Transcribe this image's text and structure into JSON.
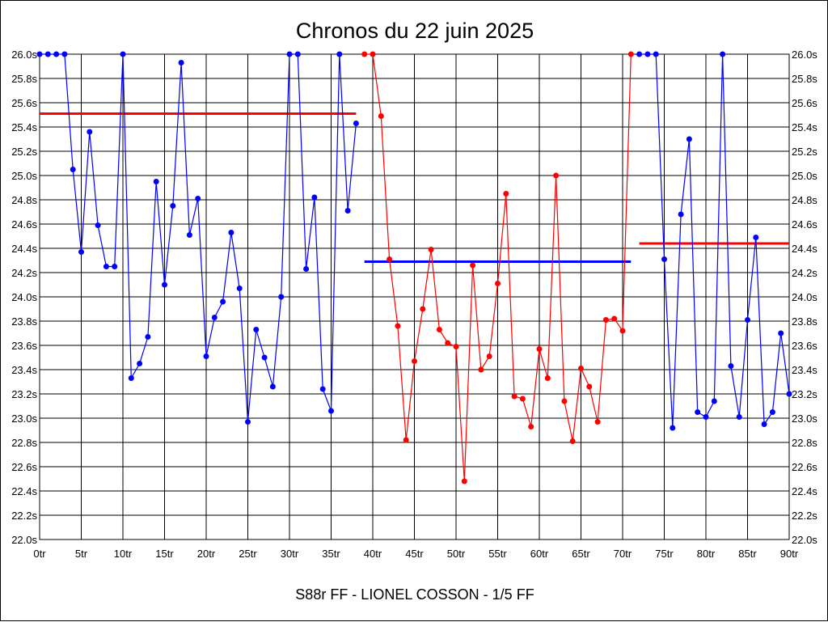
{
  "chart_data": {
    "type": "line",
    "title": "Chronos du 22 juin 2025",
    "xlabel": "S88r FF - LIONEL COSSON - 1/5 FF",
    "ylabel": "",
    "xlim": [
      0,
      90
    ],
    "ylim": [
      22.0,
      26.0
    ],
    "grid": true,
    "x_ticks": [
      "0tr",
      "5tr",
      "10tr",
      "15tr",
      "20tr",
      "25tr",
      "30tr",
      "35tr",
      "40tr",
      "45tr",
      "50tr",
      "55tr",
      "60tr",
      "65tr",
      "70tr",
      "75tr",
      "80tr",
      "85tr",
      "90tr"
    ],
    "y_ticks": [
      "22.0s",
      "22.2s",
      "22.4s",
      "22.6s",
      "22.8s",
      "23.0s",
      "23.2s",
      "23.4s",
      "23.6s",
      "23.8s",
      "24.0s",
      "24.2s",
      "24.4s",
      "24.6s",
      "24.8s",
      "25.0s",
      "25.2s",
      "25.4s",
      "25.6s",
      "25.8s",
      "26.0s"
    ],
    "series": [
      {
        "name": "segment-1",
        "color": "#0000ff",
        "x_start": 0,
        "values": [
          26.0,
          26.0,
          26.0,
          26.0,
          25.05,
          24.37,
          25.36,
          24.59,
          24.25,
          24.25,
          26.0,
          23.33,
          23.45,
          23.67,
          24.95,
          24.1,
          24.75,
          25.93,
          24.51,
          24.81,
          23.51,
          23.83,
          23.96,
          24.53,
          24.07,
          22.97,
          23.73,
          23.5,
          23.26,
          24.0,
          26.0,
          26.0,
          24.23,
          24.82,
          23.24,
          23.06,
          26.0,
          24.71,
          25.43
        ]
      },
      {
        "name": "segment-2",
        "color": "#ff0000",
        "x_start": 39,
        "values": [
          26.0,
          26.0,
          25.49,
          24.31,
          23.76,
          22.82,
          23.47,
          23.9,
          24.39,
          23.73,
          23.62,
          23.59,
          22.48,
          24.26,
          23.4,
          23.51,
          24.11,
          24.85,
          23.18,
          23.16,
          22.93,
          23.57,
          23.33,
          25.0,
          23.14,
          22.81,
          23.41,
          23.26,
          22.97,
          23.81,
          23.82,
          23.72,
          26.0
        ]
      },
      {
        "name": "segment-3",
        "color": "#0000ff",
        "x_start": 72,
        "values": [
          26.0,
          26.0,
          26.0,
          24.31,
          22.92,
          24.68,
          25.3,
          23.05,
          23.01,
          23.14,
          26.0,
          23.43,
          23.01,
          23.81,
          24.49,
          22.95,
          23.05,
          23.7,
          23.2
        ]
      }
    ],
    "averages": [
      {
        "name": "average-segment-1",
        "color": "#ff0000",
        "x_from": 0,
        "x_to": 38,
        "value": 25.51
      },
      {
        "name": "average-segment-2",
        "color": "#0000ff",
        "x_from": 39,
        "x_to": 71,
        "value": 24.29
      },
      {
        "name": "average-segment-3",
        "color": "#ff0000",
        "x_from": 72,
        "x_to": 90,
        "value": 24.44
      }
    ]
  }
}
